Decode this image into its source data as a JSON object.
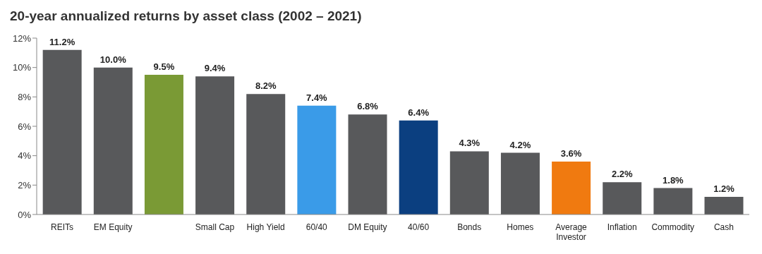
{
  "chart_data": {
    "type": "bar",
    "title": "20-year annualized returns by asset class (2002 – 2021)",
    "categories": [
      "REITs",
      "EM Equity",
      null,
      "Small Cap",
      "High Yield",
      "60/40",
      "DM Equity",
      "40/60",
      "Bonds",
      "Homes",
      "Average Investor",
      "Inflation",
      "Commodity",
      "Cash"
    ],
    "values": [
      11.2,
      10.0,
      9.5,
      9.4,
      8.2,
      7.4,
      6.8,
      6.4,
      4.3,
      4.2,
      3.6,
      2.2,
      1.8,
      1.2
    ],
    "colors": [
      "#58595b",
      "#58595b",
      "#7a9a35",
      "#58595b",
      "#58595b",
      "#3a9be8",
      "#58595b",
      "#0b3f80",
      "#58595b",
      "#58595b",
      "#f07a10",
      "#58595b",
      "#58595b",
      "#58595b"
    ],
    "value_labels": [
      "11.2%",
      "10.0%",
      "9.5%",
      "9.4%",
      "8.2%",
      "7.4%",
      "6.8%",
      "6.4%",
      "4.3%",
      "4.2%",
      "3.6%",
      "2.2%",
      "1.8%",
      "1.2%"
    ],
    "ylim": [
      0,
      12
    ],
    "yticks": [
      {
        "value": 0,
        "label": "0%"
      },
      {
        "value": 2,
        "label": "2%"
      },
      {
        "value": 4,
        "label": "4%"
      },
      {
        "value": 6,
        "label": "6%"
      },
      {
        "value": 8,
        "label": "8%"
      },
      {
        "value": 10,
        "label": "10%"
      },
      {
        "value": 12,
        "label": "12%"
      }
    ],
    "grid": false
  }
}
